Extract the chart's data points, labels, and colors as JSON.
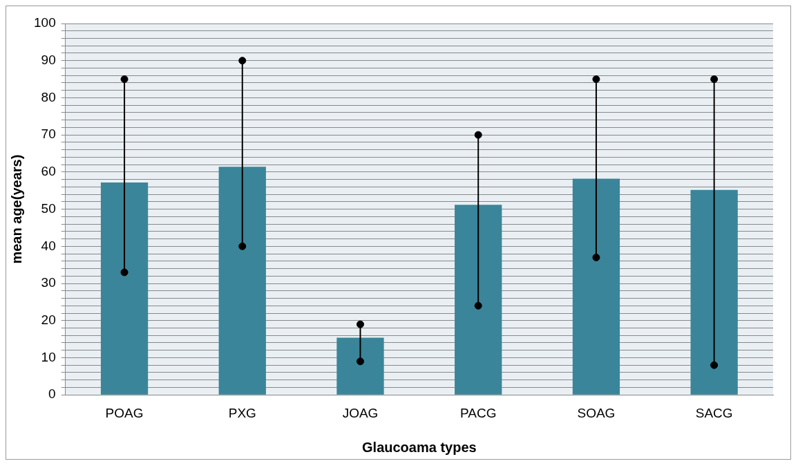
{
  "chart_data": {
    "type": "bar",
    "xlabel": "Glaucoama types",
    "ylabel": "mean age(years)",
    "categories": [
      "POAG",
      "PXG",
      "JOAG",
      "PACG",
      "SOAG",
      "SACG"
    ],
    "series": [
      {
        "color": "#3a8599",
        "values": [
          57.2,
          61.4,
          15.4,
          51.2,
          58.2,
          55.2
        ]
      },
      {
        "type": "scatter",
        "color": "#000000",
        "x": [
          "POAG",
          "PXG",
          "JOAG",
          "PACG",
          "SOAG",
          "SACG"
        ],
        "values": [
          33,
          40,
          9,
          24,
          37,
          8
        ]
      },
      {
        "type": "scatter",
        "color": "#000000",
        "x": [
          "POAG",
          "PXG",
          "JOAG",
          "PACG",
          "SOAG",
          "SACG"
        ],
        "values": [
          85,
          90,
          19,
          70,
          85,
          85
        ]
      }
    ],
    "marker": "circle",
    "ylim": [
      0,
      100
    ],
    "yticks": [
      0,
      {
        "value": 2,
        "label": null
      },
      {
        "value": 4,
        "label": null
      },
      {
        "value": 6,
        "label": null
      },
      {
        "value": 8,
        "label": null
      },
      10,
      {
        "value": 12,
        "label": null
      },
      {
        "value": 14,
        "label": null
      },
      {
        "value": 16,
        "label": null
      },
      {
        "value": 18,
        "label": null
      },
      20,
      {
        "value": 22,
        "label": null
      },
      {
        "value": 24,
        "label": null
      },
      {
        "value": 26,
        "label": null
      },
      {
        "value": 28,
        "label": null
      },
      30,
      {
        "value": 32,
        "label": null
      },
      {
        "value": 34,
        "label": null
      },
      {
        "value": 36,
        "label": null
      },
      {
        "value": 38,
        "label": null
      },
      40,
      {
        "value": 42,
        "label": null
      },
      {
        "value": 44,
        "label": null
      },
      {
        "value": 46,
        "label": null
      },
      {
        "value": 48,
        "label": null
      },
      50,
      {
        "value": 52,
        "label": null
      },
      {
        "value": 54,
        "label": null
      },
      {
        "value": 56,
        "label": null
      },
      {
        "value": 58,
        "label": null
      },
      60,
      {
        "value": 62,
        "label": null
      },
      {
        "value": 64,
        "label": null
      },
      {
        "value": 66,
        "label": null
      },
      {
        "value": 68,
        "label": null
      },
      70,
      {
        "value": 72,
        "label": null
      },
      {
        "value": 74,
        "label": null
      },
      {
        "value": 76,
        "label": null
      },
      {
        "value": 78,
        "label": null
      },
      80,
      {
        "value": 82,
        "label": null
      },
      {
        "value": 84,
        "label": null
      },
      {
        "value": 86,
        "label": null
      },
      {
        "value": 88,
        "label": null
      },
      90,
      {
        "value": 92,
        "label": null
      },
      {
        "value": 94,
        "label": null
      },
      {
        "value": 96,
        "label": null
      },
      {
        "value": 98,
        "label": null
      },
      100
    ],
    "grid": "y",
    "legend": false
  }
}
